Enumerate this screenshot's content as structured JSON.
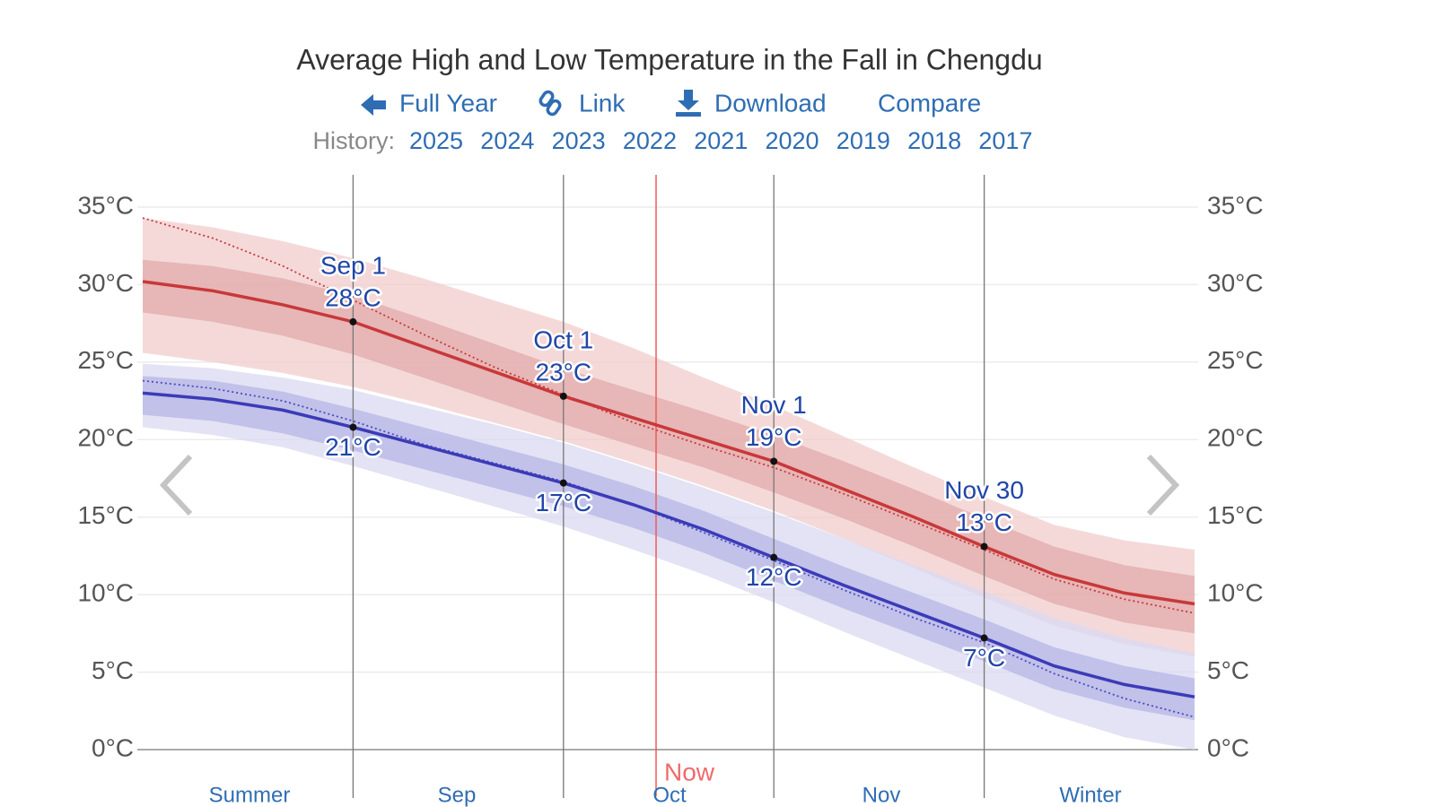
{
  "header": {
    "nav": [
      "Full Year",
      "Link",
      "Download",
      "Compare"
    ],
    "history_label": "History:",
    "history_years": [
      "2025",
      "2024",
      "2023",
      "2022",
      "2021",
      "2020",
      "2019",
      "2018",
      "2017"
    ]
  },
  "chart_data": {
    "type": "line",
    "title": "Average High and Low Temperature in the Fall in Chengdu",
    "categories": [
      null,
      null,
      null,
      "Sep 1",
      null,
      null,
      "Oct 1",
      null,
      null,
      "Nov 1",
      null,
      null,
      "Nov 30",
      null,
      null,
      null
    ],
    "series": [
      {
        "color": "#c8383a",
        "values": [
          30.2,
          29.6,
          28.7,
          27.6,
          26.0,
          24.4,
          22.8,
          21.4,
          20.0,
          18.6,
          16.8,
          15.0,
          13.1,
          11.3,
          10.1,
          9.4
        ],
        "value_labels": [
          null,
          null,
          null,
          "28°C",
          null,
          null,
          "23°C",
          null,
          null,
          "19°C",
          null,
          null,
          "13°C",
          null,
          null,
          null
        ]
      },
      {
        "color": "#3b3bb8",
        "values": [
          23.0,
          22.6,
          21.9,
          20.8,
          19.6,
          18.4,
          17.2,
          15.8,
          14.2,
          12.4,
          10.6,
          8.9,
          7.2,
          5.4,
          4.2,
          3.4
        ],
        "value_labels": [
          null,
          null,
          null,
          "21°C",
          null,
          null,
          "17°C",
          null,
          null,
          "12°C",
          null,
          null,
          "7°C",
          null,
          null,
          null
        ]
      }
    ],
    "dotted": [
      {
        "color": "#c8383a",
        "values": [
          34.3,
          33.0,
          31.2,
          29.0,
          26.8,
          24.7,
          22.9,
          21.1,
          19.6,
          18.2,
          16.5,
          14.7,
          12.9,
          11.0,
          9.7,
          8.8
        ]
      },
      {
        "color": "#4a4ac0",
        "values": [
          23.8,
          23.3,
          22.5,
          21.2,
          19.7,
          18.5,
          17.3,
          15.8,
          14.0,
          12.2,
          10.3,
          8.5,
          6.9,
          4.9,
          3.3,
          2.1
        ]
      }
    ],
    "bands": [
      {
        "color": "#f1cccc",
        "upper": [
          34.3,
          33.7,
          32.8,
          31.7,
          30.4,
          29.0,
          27.6,
          25.9,
          24.0,
          22.2,
          20.2,
          18.2,
          16.3,
          14.5,
          13.5,
          12.9
        ],
        "lower": [
          25.6,
          25.0,
          24.3,
          23.4,
          22.3,
          21.1,
          19.9,
          18.5,
          17.0,
          15.4,
          13.6,
          11.7,
          9.8,
          8.0,
          6.8,
          6.0
        ]
      },
      {
        "color": "#d9d9f2",
        "upper": [
          24.9,
          24.6,
          24.0,
          23.2,
          22.1,
          21.0,
          19.8,
          18.4,
          16.9,
          15.3,
          13.6,
          11.9,
          10.2,
          8.5,
          7.2,
          6.2
        ],
        "lower": [
          20.8,
          20.3,
          19.5,
          18.3,
          17.0,
          15.7,
          14.4,
          12.9,
          11.3,
          9.5,
          7.6,
          5.8,
          4.0,
          2.2,
          0.8,
          0.0
        ]
      },
      {
        "color": "#e2a9a9",
        "upper": [
          31.6,
          31.2,
          30.4,
          29.3,
          27.8,
          26.2,
          24.6,
          23.2,
          21.8,
          20.3,
          18.6,
          16.8,
          14.9,
          13.1,
          11.9,
          11.2
        ],
        "lower": [
          28.2,
          27.6,
          26.7,
          25.5,
          24.0,
          22.5,
          21.0,
          19.6,
          18.2,
          16.6,
          14.9,
          13.1,
          11.2,
          9.4,
          8.2,
          7.5
        ]
      },
      {
        "color": "#b6b6e6",
        "upper": [
          24.1,
          23.8,
          23.1,
          22.0,
          20.8,
          19.6,
          18.4,
          17.0,
          15.4,
          13.6,
          11.8,
          10.1,
          8.4,
          6.6,
          5.4,
          4.6
        ],
        "lower": [
          21.6,
          21.2,
          20.4,
          19.3,
          18.1,
          16.9,
          15.7,
          14.3,
          12.7,
          10.9,
          9.1,
          7.4,
          5.7,
          3.9,
          2.7,
          1.9
        ]
      }
    ],
    "ylim": [
      0,
      35
    ],
    "yticks": [
      {
        "value": 0,
        "label": "0°C"
      },
      {
        "value": 5,
        "label": "5°C"
      },
      {
        "value": 10,
        "label": "10°C"
      },
      {
        "value": 15,
        "label": "15°C"
      },
      {
        "value": 20,
        "label": "20°C"
      },
      {
        "value": 25,
        "label": "25°C"
      },
      {
        "value": 30,
        "label": "30°C"
      },
      {
        "value": 35,
        "label": "35°C"
      }
    ],
    "y2lim": [
      0,
      35
    ],
    "y2ticks": [
      {
        "value": 0,
        "label": "0°C"
      },
      {
        "value": 5,
        "label": "5°C"
      },
      {
        "value": 10,
        "label": "10°C"
      },
      {
        "value": 15,
        "label": "15°C"
      },
      {
        "value": 20,
        "label": "20°C"
      },
      {
        "value": 25,
        "label": "25°C"
      },
      {
        "value": 30,
        "label": "30°C"
      },
      {
        "value": 35,
        "label": "35°C"
      }
    ],
    "grid": true,
    "now_label": "Now",
    "x_labels": [
      "Summer",
      "Sep",
      "Oct",
      "Nov",
      "Winter"
    ]
  }
}
